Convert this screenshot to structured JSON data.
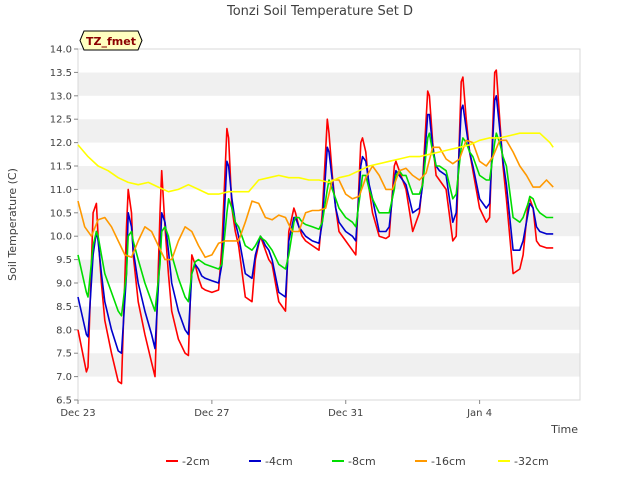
{
  "chart_data": {
    "type": "line",
    "title": "Tonzi Soil Temperature Set D",
    "xlabel": "Time",
    "ylabel": "Soil Temperature (C)",
    "badge": "TZ_fmet",
    "xlim": [
      0,
      15
    ],
    "ylim": [
      6.5,
      14.0
    ],
    "x_ticks": [
      {
        "x": 0,
        "label": "Dec 23"
      },
      {
        "x": 4,
        "label": "Dec 27"
      },
      {
        "x": 8,
        "label": "Dec 31"
      },
      {
        "x": 12,
        "label": "Jan 4"
      }
    ],
    "y_ticks": [
      6.5,
      7.0,
      7.5,
      8.0,
      8.5,
      9.0,
      9.5,
      10.0,
      10.5,
      11.0,
      11.5,
      12.0,
      12.5,
      13.0,
      13.5,
      14.0
    ],
    "y_tick_labels": [
      "6.5",
      "7.0",
      "7.5",
      "8.0",
      "8.5",
      "9.0",
      "9.5",
      "10.0",
      "10.5",
      "11.0",
      "11.5",
      "12.0",
      "12.5",
      "13.0",
      "13.5",
      "14.0"
    ],
    "grid": "horizontal-bands",
    "legend_position": "bottom",
    "series": [
      {
        "name": "-2cm",
        "color": "#ff0000",
        "x": [
          0.0,
          0.25,
          0.3,
          0.45,
          0.55,
          0.6,
          0.7,
          0.8,
          1.0,
          1.2,
          1.3,
          1.45,
          1.5,
          1.6,
          1.65,
          1.8,
          2.0,
          2.2,
          2.3,
          2.45,
          2.5,
          2.6,
          2.7,
          2.8,
          3.0,
          3.2,
          3.3,
          3.4,
          3.5,
          3.6,
          3.7,
          3.8,
          4.0,
          4.2,
          4.3,
          4.45,
          4.5,
          4.6,
          4.7,
          4.8,
          5.0,
          5.2,
          5.3,
          5.45,
          5.5,
          5.6,
          5.7,
          5.8,
          6.0,
          6.2,
          6.3,
          6.45,
          6.5,
          6.6,
          6.7,
          6.8,
          7.0,
          7.2,
          7.3,
          7.45,
          7.5,
          7.6,
          7.7,
          7.8,
          8.0,
          8.2,
          8.3,
          8.45,
          8.5,
          8.6,
          8.7,
          8.8,
          9.0,
          9.2,
          9.3,
          9.45,
          9.5,
          9.6,
          9.7,
          9.8,
          10.0,
          10.2,
          10.3,
          10.45,
          10.5,
          10.6,
          10.7,
          10.8,
          11.0,
          11.2,
          11.3,
          11.45,
          11.5,
          11.6,
          11.7,
          11.8,
          12.0,
          12.2,
          12.3,
          12.45,
          12.5,
          12.6,
          12.7,
          12.8,
          13.0,
          13.2,
          13.3,
          13.45,
          13.5,
          13.6,
          13.7,
          13.8,
          14.0,
          14.2
        ],
        "values": [
          8.0,
          7.1,
          7.2,
          10.5,
          10.7,
          10.0,
          9.0,
          8.2,
          7.5,
          6.9,
          6.85,
          10.2,
          11.0,
          10.5,
          9.6,
          8.6,
          7.9,
          7.3,
          7.0,
          10.5,
          11.4,
          10.2,
          9.2,
          8.4,
          7.8,
          7.5,
          7.45,
          9.6,
          9.4,
          9.1,
          8.9,
          8.85,
          8.8,
          8.85,
          9.8,
          12.3,
          12.1,
          10.6,
          10.1,
          9.8,
          8.7,
          8.6,
          9.5,
          10.0,
          9.9,
          9.7,
          9.5,
          9.4,
          8.6,
          8.4,
          10.1,
          10.6,
          10.5,
          10.2,
          10.0,
          9.9,
          9.8,
          9.7,
          10.5,
          12.5,
          12.2,
          11.3,
          10.6,
          10.1,
          9.9,
          9.7,
          9.6,
          12.0,
          12.1,
          11.8,
          11.0,
          10.5,
          10.0,
          9.95,
          10.0,
          11.5,
          11.6,
          11.4,
          11.2,
          11.0,
          10.1,
          10.5,
          11.2,
          13.1,
          13.0,
          12.0,
          11.3,
          11.2,
          11.0,
          9.9,
          10.0,
          13.3,
          13.4,
          12.5,
          11.8,
          11.4,
          10.6,
          10.3,
          10.4,
          13.5,
          13.55,
          12.5,
          11.5,
          10.8,
          9.2,
          9.3,
          9.6,
          10.7,
          10.8,
          10.6,
          9.9,
          9.8,
          9.75,
          9.75
        ]
      },
      {
        "name": "-4cm",
        "color": "#0000cc",
        "x": [
          0.0,
          0.25,
          0.3,
          0.45,
          0.55,
          0.6,
          0.7,
          0.8,
          1.0,
          1.2,
          1.3,
          1.45,
          1.5,
          1.6,
          1.65,
          1.8,
          2.0,
          2.2,
          2.3,
          2.45,
          2.5,
          2.6,
          2.7,
          2.8,
          3.0,
          3.2,
          3.3,
          3.4,
          3.5,
          3.6,
          3.7,
          3.8,
          4.0,
          4.2,
          4.3,
          4.45,
          4.5,
          4.6,
          4.7,
          4.8,
          5.0,
          5.2,
          5.3,
          5.45,
          5.5,
          5.6,
          5.7,
          5.8,
          6.0,
          6.2,
          6.3,
          6.45,
          6.5,
          6.6,
          6.7,
          6.8,
          7.0,
          7.2,
          7.3,
          7.45,
          7.5,
          7.6,
          7.7,
          7.8,
          8.0,
          8.2,
          8.3,
          8.45,
          8.5,
          8.6,
          8.7,
          8.8,
          9.0,
          9.2,
          9.3,
          9.45,
          9.5,
          9.6,
          9.7,
          9.8,
          10.0,
          10.2,
          10.3,
          10.45,
          10.5,
          10.6,
          10.7,
          10.8,
          11.0,
          11.2,
          11.3,
          11.45,
          11.5,
          11.6,
          11.7,
          11.8,
          12.0,
          12.2,
          12.3,
          12.45,
          12.5,
          12.6,
          12.7,
          12.8,
          13.0,
          13.2,
          13.3,
          13.45,
          13.5,
          13.6,
          13.7,
          13.8,
          14.0,
          14.2
        ],
        "values": [
          8.7,
          7.9,
          7.85,
          9.6,
          10.1,
          9.9,
          9.2,
          8.6,
          8.0,
          7.55,
          7.5,
          9.2,
          10.5,
          10.2,
          9.7,
          9.0,
          8.4,
          7.9,
          7.6,
          9.6,
          10.5,
          10.3,
          9.7,
          9.0,
          8.4,
          8.0,
          7.9,
          9.2,
          9.4,
          9.3,
          9.15,
          9.1,
          9.05,
          9.0,
          9.4,
          11.6,
          11.5,
          10.8,
          10.3,
          10.0,
          9.2,
          9.1,
          9.6,
          10.0,
          9.95,
          9.8,
          9.7,
          9.5,
          8.8,
          8.7,
          9.9,
          10.4,
          10.4,
          10.2,
          10.1,
          10.0,
          9.9,
          9.85,
          10.3,
          11.9,
          11.8,
          11.2,
          10.6,
          10.3,
          10.1,
          10.0,
          9.9,
          11.5,
          11.7,
          11.6,
          11.1,
          10.8,
          10.1,
          10.1,
          10.2,
          11.2,
          11.4,
          11.3,
          11.2,
          11.1,
          10.5,
          10.6,
          11.1,
          12.6,
          12.6,
          11.9,
          11.5,
          11.4,
          11.3,
          10.3,
          10.5,
          12.7,
          12.8,
          12.3,
          11.8,
          11.5,
          10.8,
          10.6,
          10.7,
          12.9,
          13.0,
          12.3,
          11.6,
          11.1,
          9.7,
          9.7,
          9.9,
          10.5,
          10.7,
          10.6,
          10.2,
          10.1,
          10.05,
          10.05
        ]
      },
      {
        "name": "-8cm",
        "color": "#00dd00",
        "x": [
          0.0,
          0.25,
          0.3,
          0.45,
          0.55,
          0.6,
          0.7,
          0.8,
          1.0,
          1.2,
          1.3,
          1.45,
          1.5,
          1.6,
          1.65,
          1.8,
          2.0,
          2.2,
          2.3,
          2.45,
          2.5,
          2.6,
          2.7,
          2.8,
          3.0,
          3.2,
          3.3,
          3.4,
          3.5,
          3.6,
          3.7,
          3.8,
          4.0,
          4.2,
          4.3,
          4.45,
          4.5,
          4.6,
          4.7,
          4.8,
          5.0,
          5.2,
          5.3,
          5.45,
          5.5,
          5.6,
          5.7,
          5.8,
          6.0,
          6.2,
          6.3,
          6.45,
          6.5,
          6.6,
          6.7,
          6.8,
          7.0,
          7.2,
          7.3,
          7.45,
          7.5,
          7.6,
          7.7,
          7.8,
          8.0,
          8.2,
          8.3,
          8.45,
          8.5,
          8.6,
          8.7,
          8.8,
          9.0,
          9.2,
          9.3,
          9.45,
          9.5,
          9.6,
          9.7,
          9.8,
          10.0,
          10.2,
          10.3,
          10.45,
          10.5,
          10.6,
          10.7,
          10.8,
          11.0,
          11.2,
          11.3,
          11.45,
          11.5,
          11.6,
          11.7,
          11.8,
          12.0,
          12.2,
          12.3,
          12.45,
          12.5,
          12.6,
          12.7,
          12.8,
          13.0,
          13.2,
          13.3,
          13.45,
          13.5,
          13.6,
          13.7,
          13.8,
          14.0,
          14.2
        ],
        "values": [
          9.6,
          8.8,
          8.7,
          9.8,
          10.1,
          10.0,
          9.6,
          9.2,
          8.8,
          8.4,
          8.3,
          9.2,
          10.0,
          10.1,
          9.9,
          9.5,
          9.0,
          8.6,
          8.4,
          9.4,
          10.1,
          10.2,
          10.0,
          9.6,
          9.1,
          8.7,
          8.6,
          9.2,
          9.45,
          9.5,
          9.45,
          9.4,
          9.35,
          9.3,
          9.4,
          10.5,
          10.8,
          10.6,
          10.3,
          10.2,
          9.8,
          9.7,
          9.8,
          10.0,
          9.95,
          9.9,
          9.8,
          9.7,
          9.4,
          9.3,
          9.6,
          10.3,
          10.4,
          10.4,
          10.3,
          10.25,
          10.2,
          10.15,
          10.3,
          11.0,
          11.2,
          11.0,
          10.8,
          10.6,
          10.4,
          10.3,
          10.2,
          11.0,
          11.3,
          11.3,
          11.0,
          10.8,
          10.5,
          10.5,
          10.5,
          11.0,
          11.3,
          11.4,
          11.3,
          11.3,
          10.9,
          10.9,
          11.1,
          12.1,
          12.2,
          11.8,
          11.5,
          11.5,
          11.4,
          10.8,
          10.9,
          11.9,
          12.1,
          12.0,
          11.8,
          11.7,
          11.3,
          11.2,
          11.2,
          12.0,
          12.2,
          12.0,
          11.7,
          11.5,
          10.4,
          10.3,
          10.4,
          10.7,
          10.85,
          10.8,
          10.6,
          10.5,
          10.4,
          10.4
        ]
      },
      {
        "name": "-16cm",
        "color": "#ff9900",
        "x": [
          0.0,
          0.2,
          0.4,
          0.6,
          0.8,
          1.0,
          1.2,
          1.4,
          1.6,
          1.8,
          2.0,
          2.2,
          2.4,
          2.6,
          2.8,
          3.0,
          3.2,
          3.4,
          3.6,
          3.8,
          4.0,
          4.2,
          4.4,
          4.6,
          4.8,
          5.0,
          5.2,
          5.4,
          5.6,
          5.8,
          6.0,
          6.2,
          6.4,
          6.6,
          6.8,
          7.0,
          7.2,
          7.4,
          7.6,
          7.8,
          8.0,
          8.2,
          8.4,
          8.6,
          8.8,
          9.0,
          9.2,
          9.4,
          9.6,
          9.8,
          10.0,
          10.2,
          10.4,
          10.6,
          10.8,
          11.0,
          11.2,
          11.4,
          11.6,
          11.8,
          12.0,
          12.2,
          12.4,
          12.6,
          12.8,
          13.0,
          13.2,
          13.4,
          13.6,
          13.8,
          14.0,
          14.2
        ],
        "values": [
          10.75,
          10.2,
          10.0,
          10.35,
          10.4,
          10.2,
          9.9,
          9.6,
          9.55,
          9.9,
          10.2,
          10.1,
          9.8,
          9.5,
          9.5,
          9.9,
          10.2,
          10.1,
          9.8,
          9.55,
          9.6,
          9.85,
          9.9,
          9.9,
          9.9,
          10.3,
          10.75,
          10.7,
          10.4,
          10.35,
          10.45,
          10.4,
          10.1,
          10.1,
          10.5,
          10.55,
          10.55,
          10.6,
          11.2,
          11.2,
          10.9,
          10.8,
          10.85,
          11.25,
          11.5,
          11.3,
          11.0,
          11.0,
          11.4,
          11.45,
          11.3,
          11.2,
          11.35,
          11.9,
          11.9,
          11.65,
          11.55,
          11.65,
          12.05,
          12.0,
          11.6,
          11.5,
          11.7,
          12.05,
          12.05,
          11.8,
          11.5,
          11.3,
          11.05,
          11.05,
          11.2,
          11.05
        ]
      },
      {
        "name": "-32cm",
        "color": "#ffff00",
        "x": [
          0.0,
          0.3,
          0.6,
          0.9,
          1.2,
          1.5,
          1.8,
          2.1,
          2.4,
          2.7,
          3.0,
          3.3,
          3.6,
          3.9,
          4.2,
          4.5,
          4.8,
          5.1,
          5.4,
          5.7,
          6.0,
          6.3,
          6.6,
          6.9,
          7.2,
          7.5,
          7.8,
          8.1,
          8.4,
          8.7,
          9.0,
          9.3,
          9.6,
          9.9,
          10.2,
          10.5,
          10.8,
          11.1,
          11.4,
          11.7,
          12.0,
          12.3,
          12.6,
          12.9,
          13.2,
          13.5,
          13.8,
          14.1,
          14.2
        ],
        "values": [
          11.95,
          11.7,
          11.5,
          11.4,
          11.25,
          11.15,
          11.1,
          11.15,
          11.05,
          10.95,
          11.0,
          11.1,
          11.0,
          10.9,
          10.9,
          10.95,
          10.95,
          10.95,
          11.2,
          11.25,
          11.3,
          11.25,
          11.25,
          11.2,
          11.2,
          11.15,
          11.25,
          11.3,
          11.4,
          11.5,
          11.55,
          11.6,
          11.65,
          11.7,
          11.7,
          11.75,
          11.8,
          11.85,
          11.9,
          11.95,
          12.05,
          12.1,
          12.1,
          12.15,
          12.2,
          12.2,
          12.2,
          12.0,
          11.9
        ]
      }
    ]
  }
}
